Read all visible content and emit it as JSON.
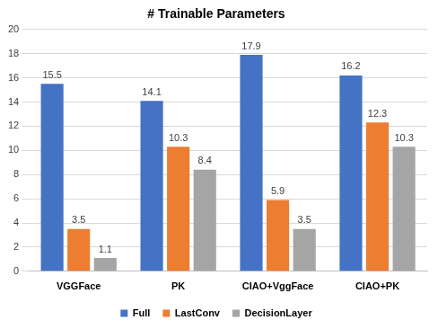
{
  "chart_data": {
    "type": "bar",
    "title": "# Trainable Parameters",
    "categories": [
      "VGGFace",
      "PK",
      "CIAO+VggFace",
      "CIAO+PK"
    ],
    "series": [
      {
        "name": "Full",
        "color": "#4472c4",
        "values": [
          15.5,
          14.1,
          17.9,
          16.2
        ]
      },
      {
        "name": "LastConv",
        "color": "#ed7d31",
        "values": [
          3.5,
          10.3,
          5.9,
          12.3
        ]
      },
      {
        "name": "DecisionLayer",
        "color": "#a5a5a5",
        "values": [
          1.1,
          8.4,
          3.5,
          10.3
        ]
      }
    ],
    "ylim": [
      0,
      20
    ],
    "yticks": [
      0,
      2,
      4,
      6,
      8,
      10,
      12,
      14,
      16,
      18,
      20
    ],
    "grid": true,
    "legend": "bottom",
    "data_labels": true
  }
}
